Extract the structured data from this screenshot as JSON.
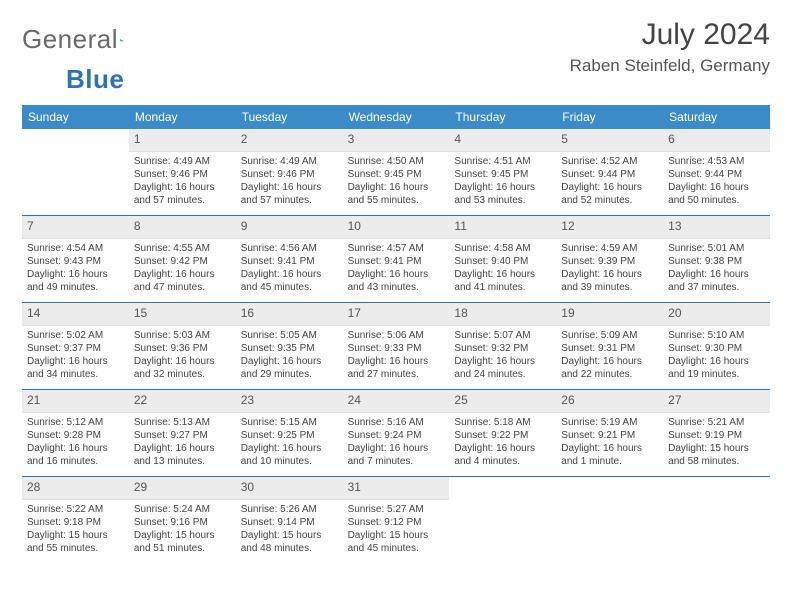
{
  "brand": {
    "general": "General",
    "blue": "Blue"
  },
  "title": "July 2024",
  "location": "Raben Steinfeld, Germany",
  "colors": {
    "headerBar": "#3b8bc9",
    "dayNumBg": "#ececec",
    "weekDivider": "#2f73b6",
    "brandGray": "#6a6a6a",
    "brandBlue": "#2f73b6"
  },
  "dow": [
    "Sunday",
    "Monday",
    "Tuesday",
    "Wednesday",
    "Thursday",
    "Friday",
    "Saturday"
  ],
  "weeks": [
    [
      {
        "n": "",
        "sr": "",
        "ss": "",
        "dl": ""
      },
      {
        "n": "1",
        "sr": "4:49 AM",
        "ss": "9:46 PM",
        "dl": "16 hours and 57 minutes."
      },
      {
        "n": "2",
        "sr": "4:49 AM",
        "ss": "9:46 PM",
        "dl": "16 hours and 57 minutes."
      },
      {
        "n": "3",
        "sr": "4:50 AM",
        "ss": "9:45 PM",
        "dl": "16 hours and 55 minutes."
      },
      {
        "n": "4",
        "sr": "4:51 AM",
        "ss": "9:45 PM",
        "dl": "16 hours and 53 minutes."
      },
      {
        "n": "5",
        "sr": "4:52 AM",
        "ss": "9:44 PM",
        "dl": "16 hours and 52 minutes."
      },
      {
        "n": "6",
        "sr": "4:53 AM",
        "ss": "9:44 PM",
        "dl": "16 hours and 50 minutes."
      }
    ],
    [
      {
        "n": "7",
        "sr": "4:54 AM",
        "ss": "9:43 PM",
        "dl": "16 hours and 49 minutes."
      },
      {
        "n": "8",
        "sr": "4:55 AM",
        "ss": "9:42 PM",
        "dl": "16 hours and 47 minutes."
      },
      {
        "n": "9",
        "sr": "4:56 AM",
        "ss": "9:41 PM",
        "dl": "16 hours and 45 minutes."
      },
      {
        "n": "10",
        "sr": "4:57 AM",
        "ss": "9:41 PM",
        "dl": "16 hours and 43 minutes."
      },
      {
        "n": "11",
        "sr": "4:58 AM",
        "ss": "9:40 PM",
        "dl": "16 hours and 41 minutes."
      },
      {
        "n": "12",
        "sr": "4:59 AM",
        "ss": "9:39 PM",
        "dl": "16 hours and 39 minutes."
      },
      {
        "n": "13",
        "sr": "5:01 AM",
        "ss": "9:38 PM",
        "dl": "16 hours and 37 minutes."
      }
    ],
    [
      {
        "n": "14",
        "sr": "5:02 AM",
        "ss": "9:37 PM",
        "dl": "16 hours and 34 minutes."
      },
      {
        "n": "15",
        "sr": "5:03 AM",
        "ss": "9:36 PM",
        "dl": "16 hours and 32 minutes."
      },
      {
        "n": "16",
        "sr": "5:05 AM",
        "ss": "9:35 PM",
        "dl": "16 hours and 29 minutes."
      },
      {
        "n": "17",
        "sr": "5:06 AM",
        "ss": "9:33 PM",
        "dl": "16 hours and 27 minutes."
      },
      {
        "n": "18",
        "sr": "5:07 AM",
        "ss": "9:32 PM",
        "dl": "16 hours and 24 minutes."
      },
      {
        "n": "19",
        "sr": "5:09 AM",
        "ss": "9:31 PM",
        "dl": "16 hours and 22 minutes."
      },
      {
        "n": "20",
        "sr": "5:10 AM",
        "ss": "9:30 PM",
        "dl": "16 hours and 19 minutes."
      }
    ],
    [
      {
        "n": "21",
        "sr": "5:12 AM",
        "ss": "9:28 PM",
        "dl": "16 hours and 16 minutes."
      },
      {
        "n": "22",
        "sr": "5:13 AM",
        "ss": "9:27 PM",
        "dl": "16 hours and 13 minutes."
      },
      {
        "n": "23",
        "sr": "5:15 AM",
        "ss": "9:25 PM",
        "dl": "16 hours and 10 minutes."
      },
      {
        "n": "24",
        "sr": "5:16 AM",
        "ss": "9:24 PM",
        "dl": "16 hours and 7 minutes."
      },
      {
        "n": "25",
        "sr": "5:18 AM",
        "ss": "9:22 PM",
        "dl": "16 hours and 4 minutes."
      },
      {
        "n": "26",
        "sr": "5:19 AM",
        "ss": "9:21 PM",
        "dl": "16 hours and 1 minute."
      },
      {
        "n": "27",
        "sr": "5:21 AM",
        "ss": "9:19 PM",
        "dl": "15 hours and 58 minutes."
      }
    ],
    [
      {
        "n": "28",
        "sr": "5:22 AM",
        "ss": "9:18 PM",
        "dl": "15 hours and 55 minutes."
      },
      {
        "n": "29",
        "sr": "5:24 AM",
        "ss": "9:16 PM",
        "dl": "15 hours and 51 minutes."
      },
      {
        "n": "30",
        "sr": "5:26 AM",
        "ss": "9:14 PM",
        "dl": "15 hours and 48 minutes."
      },
      {
        "n": "31",
        "sr": "5:27 AM",
        "ss": "9:12 PM",
        "dl": "15 hours and 45 minutes."
      },
      {
        "n": "",
        "sr": "",
        "ss": "",
        "dl": ""
      },
      {
        "n": "",
        "sr": "",
        "ss": "",
        "dl": ""
      },
      {
        "n": "",
        "sr": "",
        "ss": "",
        "dl": ""
      }
    ]
  ],
  "labels": {
    "sunrise": "Sunrise: ",
    "sunset": "Sunset: ",
    "daylight": "Daylight: "
  }
}
